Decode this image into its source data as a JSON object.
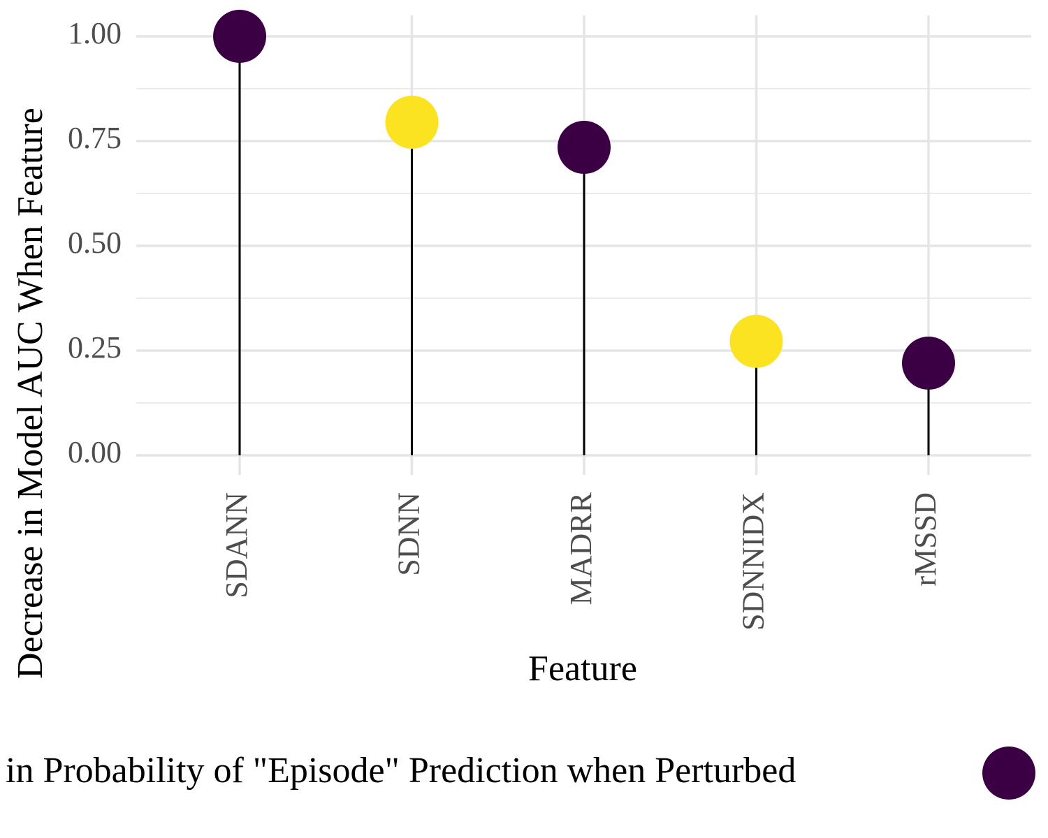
{
  "chart_data": {
    "type": "lollipop",
    "y_axis_label": "Decrease in Model AUC When Feature",
    "x_axis_label": "Feature",
    "categories": [
      "SDANN",
      "SDNN",
      "MADRR",
      "SDNNIDX",
      "rMSSD"
    ],
    "values": [
      1.0,
      0.795,
      0.735,
      0.272,
      0.22
    ],
    "colors": [
      "#3b0043",
      "#fbe322",
      "#3b0043",
      "#fbe322",
      "#3b0043"
    ],
    "ylim": [
      0,
      1
    ],
    "yticks": [
      {
        "value": 0,
        "label": "0.00"
      },
      {
        "value": 0.25,
        "label": "0.25"
      },
      {
        "value": 0.5,
        "label": "0.50"
      },
      {
        "value": 0.75,
        "label": "0.75"
      },
      {
        "value": 1,
        "label": "1.00"
      }
    ],
    "minor_yticks": [
      0.125,
      0.375,
      0.625,
      0.875
    ],
    "grid": true,
    "legend": {
      "title": "in Probability of \"Episode\" Prediction when Perturbed",
      "color": "#3b0043"
    }
  }
}
